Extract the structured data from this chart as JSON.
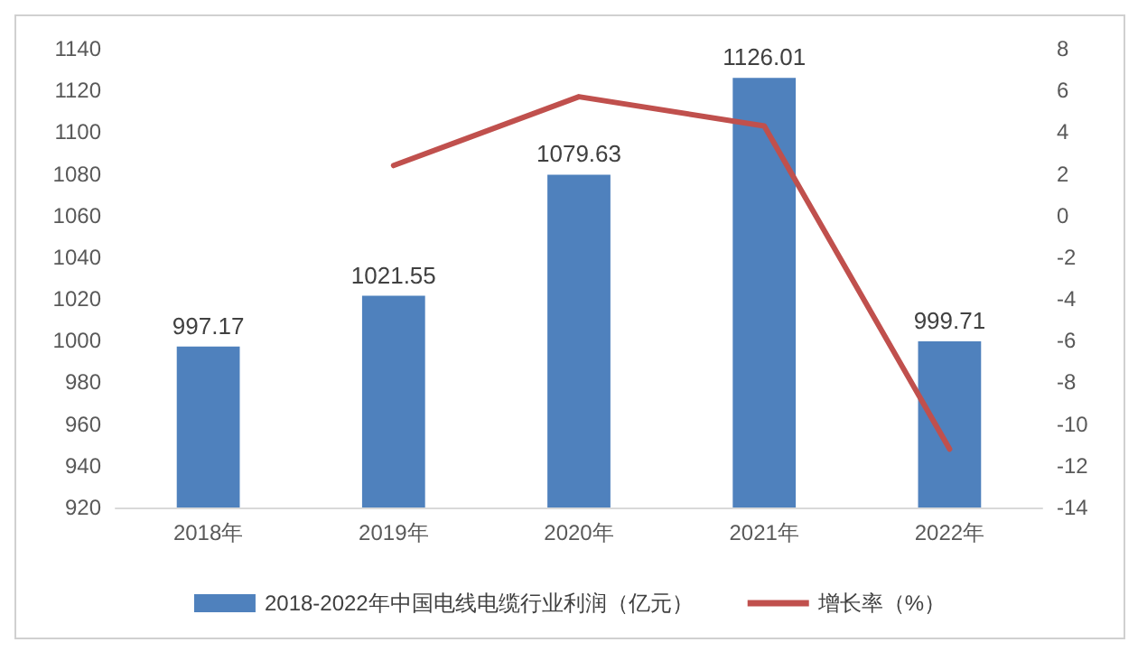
{
  "chart_data": {
    "type": "bar",
    "categories": [
      "2018年",
      "2019年",
      "2020年",
      "2021年",
      "2022年"
    ],
    "series": [
      {
        "name": "2018-2022年中国电线电缆行业利润（亿元）",
        "color": "#4f81bd",
        "values": [
          997.17,
          1021.55,
          1079.63,
          1126.01,
          999.71
        ],
        "value_labels": [
          "997.17",
          "1021.55",
          "1079.63",
          "1126.01",
          "999.71"
        ]
      },
      {
        "name": "增长率（%）",
        "type": "line",
        "axis": "y2",
        "color": "#c0504d",
        "values": [
          null,
          2.4,
          5.7,
          4.3,
          -11.2
        ]
      }
    ],
    "ylim": [
      920,
      1140
    ],
    "yticks": [
      920,
      940,
      960,
      980,
      1000,
      1020,
      1040,
      1060,
      1080,
      1100,
      1120,
      1140
    ],
    "y2lim": [
      -14,
      8
    ],
    "y2ticks": [
      -14,
      -12,
      -10,
      -8,
      -6,
      -4,
      -2,
      0,
      2,
      4,
      6,
      8
    ],
    "grid": false,
    "legend": "bottom",
    "marker": "none",
    "line_style": "solid"
  }
}
